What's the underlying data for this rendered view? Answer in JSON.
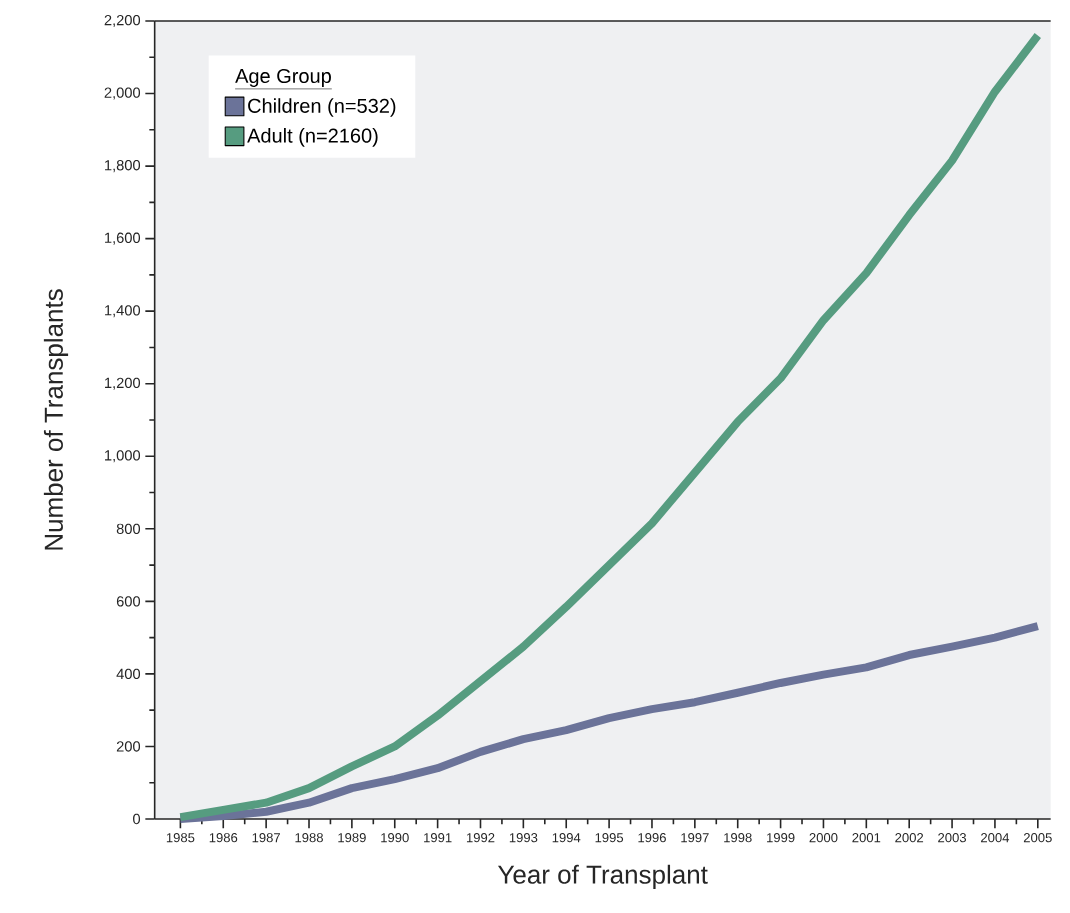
{
  "chart_data": {
    "type": "line",
    "xlabel": "Year of Transplant",
    "ylabel": "Number of Transplants",
    "legend_title": "Age Group",
    "legend": "top left",
    "x": [
      1985,
      1986,
      1987,
      1988,
      1989,
      1990,
      1991,
      1992,
      1993,
      1994,
      1995,
      1996,
      1997,
      1998,
      1999,
      2000,
      2001,
      2002,
      2003,
      2004,
      2005
    ],
    "series": [
      {
        "name": "Children (n=532)",
        "color": "#6b7399",
        "values": [
          0,
          8,
          20,
          45,
          85,
          110,
          140,
          185,
          220,
          245,
          278,
          303,
          322,
          348,
          375,
          398,
          418,
          452,
          475,
          500,
          532
        ]
      },
      {
        "name": "Adult (n=2160)",
        "color": "#569c80",
        "values": [
          5,
          25,
          45,
          85,
          145,
          200,
          285,
          380,
          475,
          585,
          700,
          815,
          955,
          1095,
          1215,
          1375,
          1505,
          1665,
          1815,
          2005,
          2160
        ]
      }
    ],
    "xlim": [
      1984.4,
      2005.3
    ],
    "ylim": [
      0,
      2200
    ],
    "xticks": [
      1985,
      1986,
      1987,
      1988,
      1989,
      1990,
      1991,
      1992,
      1993,
      1994,
      1995,
      1996,
      1997,
      1998,
      1999,
      2000,
      2001,
      2002,
      2003,
      2004,
      2005
    ],
    "yticks": [
      0,
      200,
      400,
      600,
      800,
      {
        "value": 1000,
        "label": "1,000"
      },
      {
        "value": 1200,
        "label": "1,200"
      },
      {
        "value": 1400,
        "label": "1,400"
      },
      {
        "value": 1600,
        "label": "1,600"
      },
      {
        "value": 1800,
        "label": "1,800"
      },
      {
        "value": 2000,
        "label": "2,000"
      },
      {
        "value": 2200,
        "label": "2,200"
      }
    ]
  }
}
